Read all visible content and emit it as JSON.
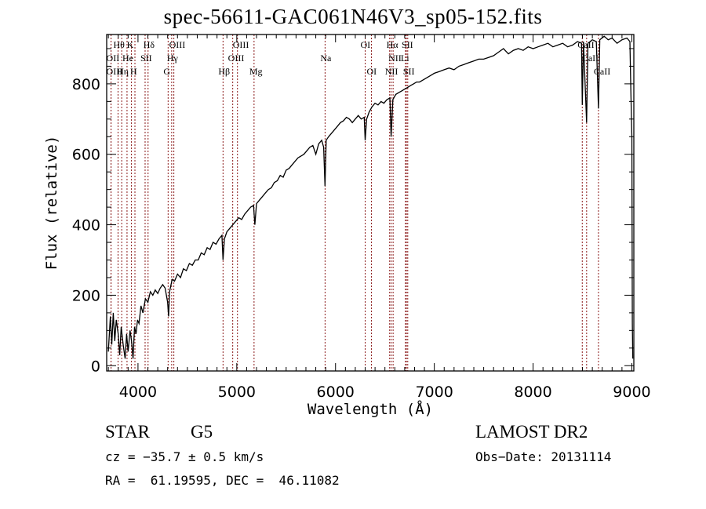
{
  "chart_data": {
    "type": "line",
    "title": "spec-56611-GAC061N46V3_sp05-152.fits",
    "xlabel": "Wavelength (Å)",
    "ylabel": "Flux (relative)",
    "xlim": [
      3683,
      9020
    ],
    "ylim": [
      -15,
      940
    ],
    "x_ticks": [
      4000,
      5000,
      6000,
      7000,
      8000,
      9000
    ],
    "y_ticks": [
      0,
      200,
      400,
      600,
      800
    ],
    "x_minor_step": 100,
    "y_minor_step": 50,
    "grid": false,
    "line_color": "#000000",
    "marker_line_color": "#8b1a1a",
    "spectrum": [
      [
        3700,
        40
      ],
      [
        3720,
        140
      ],
      [
        3735,
        60
      ],
      [
        3750,
        150
      ],
      [
        3765,
        70
      ],
      [
        3780,
        130
      ],
      [
        3800,
        90
      ],
      [
        3815,
        30
      ],
      [
        3830,
        110
      ],
      [
        3850,
        60
      ],
      [
        3870,
        20
      ],
      [
        3885,
        90
      ],
      [
        3900,
        40
      ],
      [
        3920,
        100
      ],
      [
        3935,
        70
      ],
      [
        3950,
        20
      ],
      [
        3965,
        110
      ],
      [
        3980,
        90
      ],
      [
        3995,
        130
      ],
      [
        4010,
        120
      ],
      [
        4030,
        170
      ],
      [
        4050,
        150
      ],
      [
        4075,
        190
      ],
      [
        4100,
        180
      ],
      [
        4125,
        210
      ],
      [
        4150,
        200
      ],
      [
        4175,
        215
      ],
      [
        4200,
        205
      ],
      [
        4225,
        220
      ],
      [
        4250,
        230
      ],
      [
        4275,
        220
      ],
      [
        4300,
        180
      ],
      [
        4310,
        140
      ],
      [
        4320,
        210
      ],
      [
        4345,
        245
      ],
      [
        4370,
        240
      ],
      [
        4400,
        260
      ],
      [
        4430,
        250
      ],
      [
        4460,
        275
      ],
      [
        4490,
        270
      ],
      [
        4520,
        290
      ],
      [
        4550,
        285
      ],
      [
        4580,
        300
      ],
      [
        4610,
        300
      ],
      [
        4640,
        320
      ],
      [
        4670,
        315
      ],
      [
        4700,
        335
      ],
      [
        4730,
        330
      ],
      [
        4760,
        350
      ],
      [
        4790,
        345
      ],
      [
        4820,
        360
      ],
      [
        4850,
        370
      ],
      [
        4861,
        300
      ],
      [
        4875,
        360
      ],
      [
        4900,
        380
      ],
      [
        4930,
        390
      ],
      [
        4960,
        400
      ],
      [
        4990,
        410
      ],
      [
        5020,
        420
      ],
      [
        5050,
        415
      ],
      [
        5080,
        430
      ],
      [
        5110,
        440
      ],
      [
        5140,
        450
      ],
      [
        5170,
        455
      ],
      [
        5183,
        400
      ],
      [
        5200,
        460
      ],
      [
        5230,
        470
      ],
      [
        5260,
        480
      ],
      [
        5290,
        490
      ],
      [
        5320,
        500
      ],
      [
        5350,
        505
      ],
      [
        5380,
        520
      ],
      [
        5410,
        525
      ],
      [
        5440,
        540
      ],
      [
        5470,
        535
      ],
      [
        5500,
        555
      ],
      [
        5530,
        560
      ],
      [
        5560,
        570
      ],
      [
        5590,
        580
      ],
      [
        5620,
        590
      ],
      [
        5650,
        595
      ],
      [
        5680,
        600
      ],
      [
        5710,
        610
      ],
      [
        5740,
        620
      ],
      [
        5770,
        625
      ],
      [
        5800,
        600
      ],
      [
        5830,
        630
      ],
      [
        5860,
        640
      ],
      [
        5880,
        620
      ],
      [
        5893,
        510
      ],
      [
        5905,
        640
      ],
      [
        5930,
        650
      ],
      [
        5960,
        660
      ],
      [
        5990,
        670
      ],
      [
        6020,
        680
      ],
      [
        6050,
        690
      ],
      [
        6080,
        695
      ],
      [
        6110,
        705
      ],
      [
        6140,
        700
      ],
      [
        6170,
        690
      ],
      [
        6200,
        700
      ],
      [
        6230,
        710
      ],
      [
        6260,
        700
      ],
      [
        6290,
        705
      ],
      [
        6300,
        640
      ],
      [
        6315,
        700
      ],
      [
        6340,
        720
      ],
      [
        6370,
        735
      ],
      [
        6400,
        745
      ],
      [
        6430,
        740
      ],
      [
        6460,
        750
      ],
      [
        6490,
        745
      ],
      [
        6520,
        755
      ],
      [
        6550,
        760
      ],
      [
        6563,
        650
      ],
      [
        6580,
        755
      ],
      [
        6610,
        770
      ],
      [
        6640,
        775
      ],
      [
        6670,
        780
      ],
      [
        6700,
        785
      ],
      [
        6730,
        790
      ],
      [
        6760,
        795
      ],
      [
        6790,
        800
      ],
      [
        6820,
        805
      ],
      [
        6850,
        805
      ],
      [
        6880,
        810
      ],
      [
        6910,
        815
      ],
      [
        6940,
        820
      ],
      [
        6970,
        825
      ],
      [
        7000,
        830
      ],
      [
        7050,
        835
      ],
      [
        7100,
        840
      ],
      [
        7150,
        845
      ],
      [
        7200,
        840
      ],
      [
        7250,
        850
      ],
      [
        7300,
        855
      ],
      [
        7350,
        860
      ],
      [
        7400,
        865
      ],
      [
        7450,
        870
      ],
      [
        7500,
        870
      ],
      [
        7550,
        875
      ],
      [
        7600,
        880
      ],
      [
        7650,
        890
      ],
      [
        7700,
        900
      ],
      [
        7750,
        885
      ],
      [
        7800,
        895
      ],
      [
        7850,
        900
      ],
      [
        7900,
        895
      ],
      [
        7950,
        905
      ],
      [
        8000,
        900
      ],
      [
        8050,
        905
      ],
      [
        8100,
        910
      ],
      [
        8150,
        915
      ],
      [
        8200,
        905
      ],
      [
        8250,
        910
      ],
      [
        8300,
        915
      ],
      [
        8350,
        905
      ],
      [
        8400,
        910
      ],
      [
        8450,
        920
      ],
      [
        8490,
        915
      ],
      [
        8498,
        740
      ],
      [
        8510,
        920
      ],
      [
        8542,
        690
      ],
      [
        8555,
        915
      ],
      [
        8600,
        925
      ],
      [
        8640,
        920
      ],
      [
        8662,
        730
      ],
      [
        8675,
        925
      ],
      [
        8720,
        935
      ],
      [
        8760,
        925
      ],
      [
        8800,
        930
      ],
      [
        8850,
        915
      ],
      [
        8900,
        925
      ],
      [
        8950,
        930
      ],
      [
        8980,
        920
      ],
      [
        8990,
        780
      ],
      [
        9000,
        650
      ],
      [
        9005,
        120
      ],
      [
        9010,
        20
      ]
    ],
    "lines": [
      {
        "label": "Hθ",
        "wave": 3798,
        "row": 1
      },
      {
        "label": "OII",
        "wave": 3727,
        "row": 2
      },
      {
        "label": "OIII",
        "wave": 3727,
        "row": 3
      },
      {
        "label": "He",
        "wave": 3889,
        "row": 2
      },
      {
        "label": "Hη",
        "wave": 3835,
        "row": 3
      },
      {
        "label": "K",
        "wave": 3934,
        "row": 1
      },
      {
        "label": "H",
        "wave": 3969,
        "row": 3
      },
      {
        "label": "SII",
        "wave": 4072,
        "row": 2
      },
      {
        "label": "Hδ",
        "wave": 4102,
        "row": 1
      },
      {
        "label": "OIII",
        "wave": 4363,
        "row": 1
      },
      {
        "label": "Hγ",
        "wave": 4341,
        "row": 2
      },
      {
        "label": "G",
        "wave": 4305,
        "row": 3
      },
      {
        "label": "Hβ",
        "wave": 4861,
        "row": 3
      },
      {
        "label": "OIII",
        "wave": 5007,
        "row": 1
      },
      {
        "label": "OIII",
        "wave": 4959,
        "row": 2
      },
      {
        "label": "Mg",
        "wave": 5175,
        "row": 3
      },
      {
        "label": "Na",
        "wave": 5894,
        "row": 2
      },
      {
        "label": "OI",
        "wave": 6300,
        "row": 1
      },
      {
        "label": "OI",
        "wave": 6363,
        "row": 3
      },
      {
        "label": "Hα",
        "wave": 6563,
        "row": 1
      },
      {
        "label": "NII",
        "wave": 6583,
        "row": 2
      },
      {
        "label": "NII",
        "wave": 6548,
        "row": 3
      },
      {
        "label": "SII",
        "wave": 6717,
        "row": 1
      },
      {
        "label": "Li",
        "wave": 6708,
        "row": 2
      },
      {
        "label": "SII",
        "wave": 6731,
        "row": 3
      },
      {
        "label": "CaII",
        "wave": 8498,
        "row": 1
      },
      {
        "label": "CaII",
        "wave": 8542,
        "row": 2
      },
      {
        "label": "CaII",
        "wave": 8662,
        "row": 3
      }
    ]
  },
  "info": {
    "class": "STAR",
    "subclass": "G5",
    "redshift": "cz = −35.7 ± 0.5 km/s",
    "coords": "RA =  61.19595, DEC =  46.11082",
    "survey": "LAMOST DR2",
    "obs_date": "Obs−Date: 20131114"
  }
}
